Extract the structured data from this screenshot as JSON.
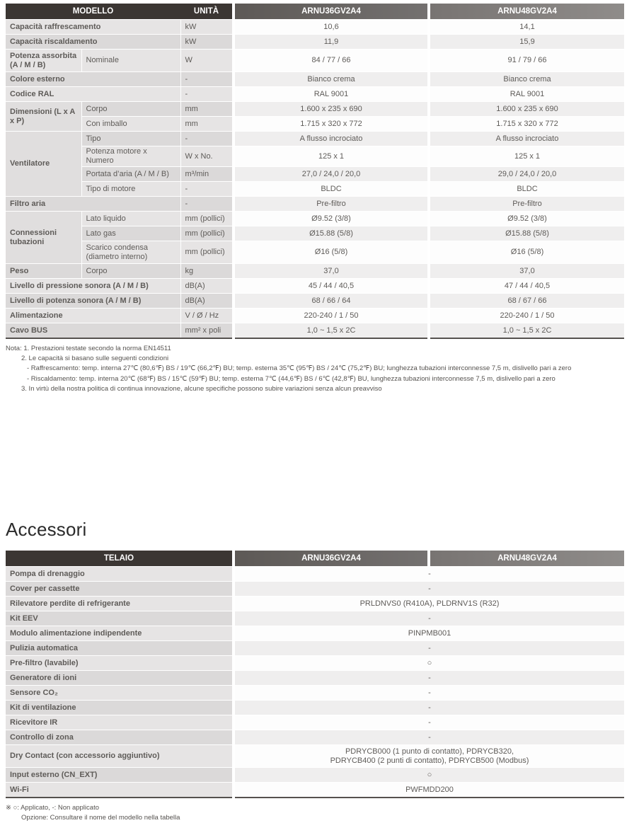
{
  "colors": {
    "header_dark": "#3b3633",
    "header_model_gradient_start": "#5d5956",
    "header_model_gradient_end": "#8f8c8a",
    "row_gray": "#efeeee",
    "label_gray": "#e0dede",
    "text_dark": "#474340"
  },
  "spec_table": {
    "header": [
      {
        "t": "MODELLO",
        "cls": "h-dark",
        "cs": 2
      },
      {
        "t": "UNITÀ",
        "cls": "h-dark"
      },
      {
        "t": "ARNU36GV2A4",
        "cls": "h-model h-m1"
      },
      {
        "t": "ARNU48GV2A4",
        "cls": "h-model h-m2"
      }
    ],
    "rows": [
      {
        "z": "rw",
        "cells": [
          {
            "t": "Capacità raffrescamento",
            "cls": "lbl",
            "cs": 2
          },
          {
            "t": "kW",
            "cls": "unit"
          },
          {
            "t": "10,6",
            "cls": "val"
          },
          {
            "t": "14,1",
            "cls": "val"
          }
        ]
      },
      {
        "z": "rg",
        "cells": [
          {
            "t": "Capacità riscaldamento",
            "cls": "lbl",
            "cs": 2
          },
          {
            "t": "kW",
            "cls": "unit"
          },
          {
            "t": "11,9",
            "cls": "val"
          },
          {
            "t": "15,9",
            "cls": "val"
          }
        ]
      },
      {
        "z": "rw",
        "tall": true,
        "cells": [
          {
            "t": "Potenza assorbita (A / M / B)",
            "cls": "lbl"
          },
          {
            "t": "Nominale",
            "cls": "sub"
          },
          {
            "t": "W",
            "cls": "unit"
          },
          {
            "t": "84 / 77 / 66",
            "cls": "val"
          },
          {
            "t": "91 / 79 / 66",
            "cls": "val"
          }
        ]
      },
      {
        "z": "rg",
        "cells": [
          {
            "t": "Colore esterno",
            "cls": "lbl",
            "cs": 2
          },
          {
            "t": "-",
            "cls": "unit"
          },
          {
            "t": "Bianco crema",
            "cls": "val"
          },
          {
            "t": "Bianco crema",
            "cls": "val"
          }
        ]
      },
      {
        "z": "rw",
        "cells": [
          {
            "t": "Codice RAL",
            "cls": "lbl",
            "cs": 2
          },
          {
            "t": "-",
            "cls": "unit"
          },
          {
            "t": "RAL 9001",
            "cls": "val"
          },
          {
            "t": "RAL 9001",
            "cls": "val"
          }
        ]
      },
      {
        "z": "rg",
        "cells": [
          {
            "t": "Dimensioni (L x A x P)",
            "cls": "lbl grp",
            "rs": 2
          },
          {
            "t": "Corpo",
            "cls": "sub"
          },
          {
            "t": "mm",
            "cls": "unit"
          },
          {
            "t": "1.600 x 235 x 690",
            "cls": "val"
          },
          {
            "t": "1.600 x 235 x 690",
            "cls": "val"
          }
        ]
      },
      {
        "z": "rw",
        "cells": [
          {
            "t": "Con imballo",
            "cls": "sub"
          },
          {
            "t": "mm",
            "cls": "unit"
          },
          {
            "t": "1.715 x 320 x 772",
            "cls": "val"
          },
          {
            "t": "1.715 x 320 x 772",
            "cls": "val"
          }
        ]
      },
      {
        "z": "rg",
        "cells": [
          {
            "t": "Ventilatore",
            "cls": "lbl grp",
            "rs": 4
          },
          {
            "t": "Tipo",
            "cls": "sub"
          },
          {
            "t": "-",
            "cls": "unit"
          },
          {
            "t": "A flusso incrociato",
            "cls": "val"
          },
          {
            "t": "A flusso incrociato",
            "cls": "val"
          }
        ]
      },
      {
        "z": "rw",
        "cells": [
          {
            "t": "Potenza motore x Numero",
            "cls": "sub"
          },
          {
            "t": "W x No.",
            "cls": "unit"
          },
          {
            "t": "125 x 1",
            "cls": "val"
          },
          {
            "t": "125 x 1",
            "cls": "val"
          }
        ]
      },
      {
        "z": "rg",
        "cells": [
          {
            "t": "Portata d’aria (A / M / B)",
            "cls": "sub"
          },
          {
            "t": "m³/min",
            "cls": "unit"
          },
          {
            "t": "27,0 / 24,0 / 20,0",
            "cls": "val"
          },
          {
            "t": "29,0 / 24,0 / 20,0",
            "cls": "val"
          }
        ]
      },
      {
        "z": "rw",
        "cells": [
          {
            "t": "Tipo di motore",
            "cls": "sub"
          },
          {
            "t": "-",
            "cls": "unit"
          },
          {
            "t": "BLDC",
            "cls": "val"
          },
          {
            "t": "BLDC",
            "cls": "val"
          }
        ]
      },
      {
        "z": "rg",
        "cells": [
          {
            "t": "Filtro aria",
            "cls": "lbl",
            "cs": 2
          },
          {
            "t": "-",
            "cls": "unit"
          },
          {
            "t": "Pre-filtro",
            "cls": "val"
          },
          {
            "t": "Pre-filtro",
            "cls": "val"
          }
        ]
      },
      {
        "z": "rw",
        "cells": [
          {
            "t": "Connessioni tubazioni",
            "cls": "lbl grp",
            "rs": 3
          },
          {
            "t": "Lato liquido",
            "cls": "sub"
          },
          {
            "t": "mm (pollici)",
            "cls": "unit"
          },
          {
            "t": "Ø9.52 (3/8)",
            "cls": "val"
          },
          {
            "t": "Ø9.52 (3/8)",
            "cls": "val"
          }
        ]
      },
      {
        "z": "rg",
        "cells": [
          {
            "t": "Lato gas",
            "cls": "sub"
          },
          {
            "t": "mm (pollici)",
            "cls": "unit"
          },
          {
            "t": "Ø15.88 (5/8)",
            "cls": "val"
          },
          {
            "t": "Ø15.88 (5/8)",
            "cls": "val"
          }
        ]
      },
      {
        "z": "rw",
        "tall": true,
        "cells": [
          {
            "t": "Scarico condensa (diametro interno)",
            "cls": "sub"
          },
          {
            "t": "mm (pollici)",
            "cls": "unit"
          },
          {
            "t": "Ø16 (5/8)",
            "cls": "val"
          },
          {
            "t": "Ø16 (5/8)",
            "cls": "val"
          }
        ]
      },
      {
        "z": "rg",
        "cells": [
          {
            "t": "Peso",
            "cls": "lbl"
          },
          {
            "t": "Corpo",
            "cls": "sub"
          },
          {
            "t": "kg",
            "cls": "unit"
          },
          {
            "t": "37,0",
            "cls": "val"
          },
          {
            "t": "37,0",
            "cls": "val"
          }
        ]
      },
      {
        "z": "rw",
        "cells": [
          {
            "t": "Livello di pressione sonora (A / M / B)",
            "cls": "lbl",
            "cs": 2
          },
          {
            "t": "dB(A)",
            "cls": "unit"
          },
          {
            "t": "45 / 44 / 40,5",
            "cls": "val"
          },
          {
            "t": "47 / 44 / 40,5",
            "cls": "val"
          }
        ]
      },
      {
        "z": "rg",
        "cells": [
          {
            "t": "Livello di potenza sonora (A / M / B)",
            "cls": "lbl",
            "cs": 2
          },
          {
            "t": "dB(A)",
            "cls": "unit"
          },
          {
            "t": "68 / 66 / 64",
            "cls": "val"
          },
          {
            "t": "68 / 67 / 66",
            "cls": "val"
          }
        ]
      },
      {
        "z": "rw",
        "cells": [
          {
            "t": "Alimentazione",
            "cls": "lbl",
            "cs": 2
          },
          {
            "t": "V / Ø / Hz",
            "cls": "unit"
          },
          {
            "t": "220-240 / 1 / 50",
            "cls": "val"
          },
          {
            "t": "220-240 / 1 / 50",
            "cls": "val"
          }
        ]
      },
      {
        "z": "rg",
        "cells": [
          {
            "t": "Cavo BUS",
            "cls": "lbl",
            "cs": 2
          },
          {
            "t": "mm² x poli",
            "cls": "unit"
          },
          {
            "t": "1,0 ~ 1,5 x 2C",
            "cls": "val"
          },
          {
            "t": "1,0 ~ 1,5 x 2C",
            "cls": "val"
          }
        ]
      }
    ]
  },
  "notes": {
    "lines": [
      {
        "ind": 0,
        "text": "Nota: 1. Prestazioni testate secondo la norma EN14511"
      },
      {
        "ind": 1,
        "text": "2. Le capacità si basano sulle seguenti condizioni"
      },
      {
        "ind": 2,
        "text": "- Raffrescamento: temp. interna 27℃ (80,6℉) BS / 19℃ (66,2℉) BU; temp. esterna 35℃ (95℉) BS / 24℃ (75,2℉) BU; lunghezza tubazioni interconnesse 7,5 m, dislivello pari a zero"
      },
      {
        "ind": 2,
        "text": "- Riscaldamento: temp. interna 20℃ (68℉) BS / 15℃ (59℉) BU; temp. esterna 7℃ (44,6℉) BS / 6℃ (42,8℉) BU, lunghezza tubazioni interconnesse 7,5 m, dislivello pari a zero"
      },
      {
        "ind": 1,
        "text": "3. In virtù della nostra politica di continua innovazione, alcune specifiche possono subire variazioni senza alcun preavviso"
      }
    ]
  },
  "accessories": {
    "heading": "Accessori",
    "table": {
      "header": [
        {
          "t": "TELAIO",
          "cls": "h-dark"
        },
        {
          "t": "ARNU36GV2A4",
          "cls": "h-model h-m1"
        },
        {
          "t": "ARNU48GV2A4",
          "cls": "h-model h-m2"
        }
      ],
      "rows": [
        {
          "z": "rw",
          "cells": [
            {
              "t": "Pompa di drenaggio",
              "cls": "lbl"
            },
            {
              "t": "-",
              "cls": "val",
              "cs": 2
            }
          ]
        },
        {
          "z": "rg",
          "cells": [
            {
              "t": "Cover per cassette",
              "cls": "lbl"
            },
            {
              "t": "-",
              "cls": "val",
              "cs": 2
            }
          ]
        },
        {
          "z": "rw",
          "cells": [
            {
              "t": "Rilevatore perdite di refrigerante",
              "cls": "lbl"
            },
            {
              "t": "PRLDNVS0 (R410A), PLDRNV1S (R32)",
              "cls": "val",
              "cs": 2
            }
          ]
        },
        {
          "z": "rg",
          "cells": [
            {
              "t": "Kit EEV",
              "cls": "lbl"
            },
            {
              "t": "-",
              "cls": "val",
              "cs": 2
            }
          ]
        },
        {
          "z": "rw",
          "cells": [
            {
              "t": "Modulo alimentazione indipendente",
              "cls": "lbl"
            },
            {
              "t": "PINPMB001",
              "cls": "val",
              "cs": 2
            }
          ]
        },
        {
          "z": "rg",
          "cells": [
            {
              "t": "Pulizia automatica",
              "cls": "lbl"
            },
            {
              "t": "-",
              "cls": "val",
              "cs": 2
            }
          ]
        },
        {
          "z": "rw",
          "cells": [
            {
              "t": "Pre-filtro (lavabile)",
              "cls": "lbl"
            },
            {
              "t": "○",
              "cls": "val",
              "cs": 2
            }
          ]
        },
        {
          "z": "rg",
          "cells": [
            {
              "t": "Generatore di ioni",
              "cls": "lbl"
            },
            {
              "t": "-",
              "cls": "val",
              "cs": 2
            }
          ]
        },
        {
          "z": "rw",
          "cells": [
            {
              "t": "Sensore CO₂",
              "cls": "lbl"
            },
            {
              "t": "-",
              "cls": "val",
              "cs": 2
            }
          ]
        },
        {
          "z": "rg",
          "cells": [
            {
              "t": "Kit di ventilazione",
              "cls": "lbl"
            },
            {
              "t": "-",
              "cls": "val",
              "cs": 2
            }
          ]
        },
        {
          "z": "rw",
          "cells": [
            {
              "t": "Ricevitore IR",
              "cls": "lbl"
            },
            {
              "t": "-",
              "cls": "val",
              "cs": 2
            }
          ]
        },
        {
          "z": "rg",
          "cells": [
            {
              "t": "Controllo di zona",
              "cls": "lbl"
            },
            {
              "t": "-",
              "cls": "val",
              "cs": 2
            }
          ]
        },
        {
          "z": "rw",
          "tall": true,
          "cells": [
            {
              "t": "Dry Contact (con accessorio aggiuntivo)",
              "cls": "lbl"
            },
            {
              "t": "PDRYCB000 (1 punto di contatto), PDRYCB320,\nPDRYCB400 (2 punti di contatto), PDRYCB500 (Modbus)",
              "cls": "val",
              "cs": 2
            }
          ]
        },
        {
          "z": "rg",
          "cells": [
            {
              "t": "Input esterno (CN_EXT)",
              "cls": "lbl"
            },
            {
              "t": "○",
              "cls": "val",
              "cs": 2
            }
          ]
        },
        {
          "z": "rw",
          "cells": [
            {
              "t": "Wi-Fi",
              "cls": "lbl"
            },
            {
              "t": "PWFMDD200",
              "cls": "val",
              "cs": 2
            }
          ]
        }
      ]
    },
    "footnotes": [
      {
        "ind": 0,
        "text": "※ ○: Applicato, -: Non applicato"
      },
      {
        "ind": 1,
        "text": "Opzione: Consultare il nome del modello nella tabella"
      }
    ]
  }
}
